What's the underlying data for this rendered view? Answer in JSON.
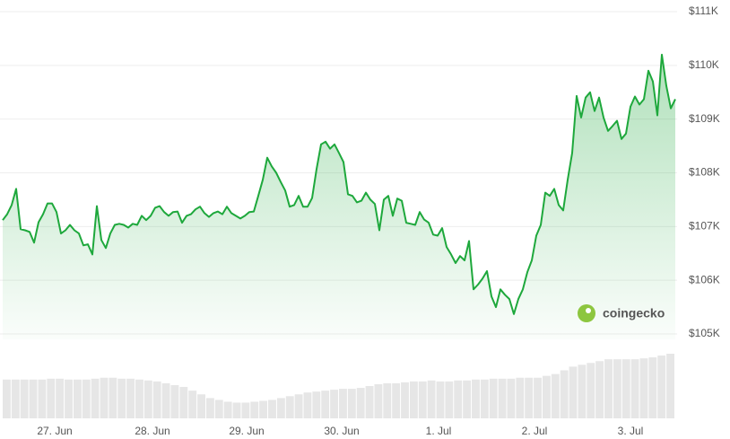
{
  "chart_data": [
    {
      "type": "area",
      "color": "#1ea83c",
      "values": [
        107120,
        107230,
        107400,
        107700,
        106950,
        106930,
        106900,
        106700,
        107080,
        107230,
        107430,
        107430,
        107270,
        106870,
        106930,
        107030,
        106930,
        106870,
        106650,
        106670,
        106480,
        107380,
        106750,
        106600,
        106870,
        107030,
        107050,
        107030,
        106980,
        107050,
        107030,
        107200,
        107120,
        107200,
        107350,
        107380,
        107270,
        107200,
        107270,
        107280,
        107070,
        107200,
        107230,
        107320,
        107370,
        107250,
        107180,
        107250,
        107280,
        107230,
        107370,
        107250,
        107200,
        107150,
        107200,
        107270,
        107280,
        107570,
        107870,
        108280,
        108120,
        108000,
        107830,
        107670,
        107370,
        107400,
        107570,
        107370,
        107370,
        107530,
        108070,
        108530,
        108580,
        108450,
        108530,
        108370,
        108200,
        107600,
        107570,
        107450,
        107480,
        107630,
        107500,
        107420,
        106930,
        107500,
        107570,
        107200,
        107520,
        107480,
        107070,
        107050,
        107030,
        107270,
        107130,
        107070,
        106850,
        106830,
        106970,
        106620,
        106480,
        106320,
        106450,
        106370,
        106730,
        105830,
        105920,
        106030,
        106170,
        105700,
        105500,
        105830,
        105730,
        105650,
        105370,
        105650,
        105830,
        106150,
        106370,
        106830,
        107030,
        107630,
        107570,
        107700,
        107400,
        107300,
        107870,
        108370,
        109430,
        109030,
        109400,
        109500,
        109150,
        109400,
        109030,
        108780,
        108870,
        108970,
        108630,
        108730,
        109230,
        109420,
        109270,
        109370,
        109900,
        109700,
        109070,
        110200,
        109620,
        109200,
        109370
      ],
      "xlim": [
        0,
        150
      ],
      "xticks": [
        {
          "value": 11.6,
          "label": "27. Jun"
        },
        {
          "value": 33.4,
          "label": "28. Jun"
        },
        {
          "value": 54.4,
          "label": "29. Jun"
        },
        {
          "value": 75.6,
          "label": "30. Jun"
        },
        {
          "value": 97.2,
          "label": "1. Jul"
        },
        {
          "value": 118.6,
          "label": "2. Jul"
        },
        {
          "value": 140,
          "label": "3. Jul"
        }
      ],
      "ylim": [
        105000,
        111000
      ],
      "yticks": [
        {
          "value": 105000,
          "label": "$105K"
        },
        {
          "value": 106000,
          "label": "$106K"
        },
        {
          "value": 107000,
          "label": "$107K"
        },
        {
          "value": 108000,
          "label": "$108K"
        },
        {
          "value": 109000,
          "label": "$109K"
        },
        {
          "value": 110000,
          "label": "$110K"
        },
        {
          "value": 111000,
          "label": "$111K"
        }
      ],
      "grid": true,
      "watermark": "coingecko"
    },
    {
      "type": "bar",
      "color": "#e6e6e6",
      "values": [
        42,
        42,
        42,
        42,
        42,
        43,
        43,
        42,
        42,
        42,
        43,
        44,
        44,
        43,
        43,
        42,
        41,
        40,
        38,
        36,
        34,
        30,
        26,
        22,
        20,
        18,
        17,
        17,
        18,
        19,
        20,
        22,
        24,
        26,
        28,
        29,
        30,
        31,
        32,
        32,
        33,
        35,
        37,
        38,
        38,
        39,
        40,
        40,
        41,
        40,
        40,
        41,
        41,
        42,
        42,
        43,
        43,
        43,
        44,
        44,
        44,
        46,
        48,
        52,
        56,
        58,
        60,
        62,
        64,
        64,
        64,
        64,
        65,
        66,
        68,
        70
      ]
    }
  ]
}
